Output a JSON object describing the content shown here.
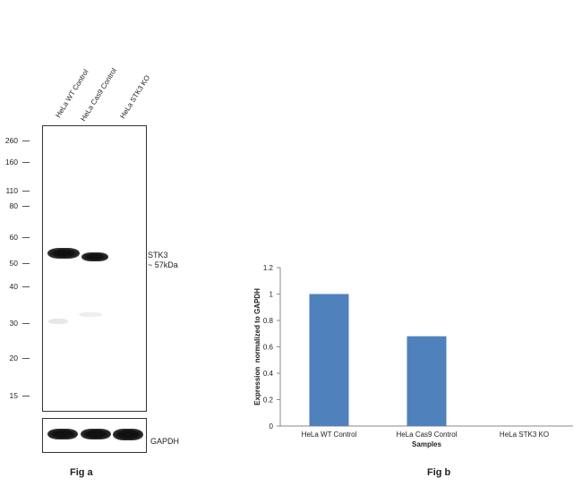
{
  "fig_a": {
    "caption": "Fig a",
    "lanes": [
      "HeLa WT Control",
      "HeLa Cas9 Control",
      "HeLa STK3 KO"
    ],
    "mw_markers": [
      "260",
      "160",
      "110",
      "80",
      "60",
      "50",
      "40",
      "30",
      "20",
      "15"
    ],
    "target_label_line1": "STK3",
    "target_label_line2": "~ 57kDa",
    "loading_control": "GAPDH"
  },
  "chart_data": {
    "type": "bar",
    "caption": "Fig b",
    "categories": [
      "HeLa WT Control",
      "HeLa Cas9 Control",
      "HeLa STK3 KO"
    ],
    "values": [
      1.0,
      0.68,
      0.0
    ],
    "xlabel": "Samples",
    "ylabel": "Expression  normalized to GAPDH",
    "ylim": [
      0,
      1.2
    ],
    "yticks": [
      "0",
      "0.2",
      "0.4",
      "0.6",
      "0.8",
      "1",
      "1.2"
    ],
    "bar_color": "#4f81bd",
    "grid": false
  }
}
